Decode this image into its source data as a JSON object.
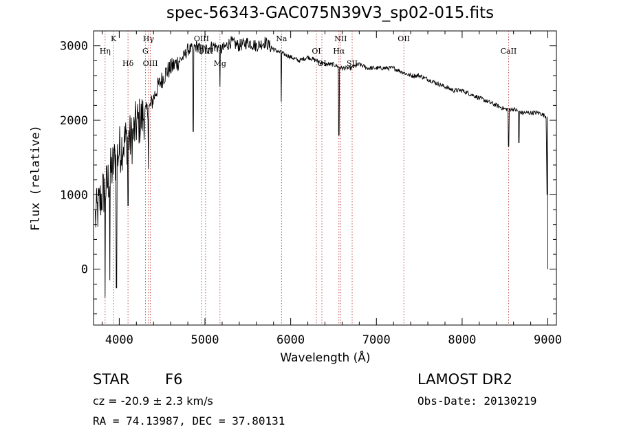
{
  "chart_data": {
    "type": "line",
    "title": "spec-56343-GAC075N39V3_sp02-015.fits",
    "xlabel": "Wavelength (Å)",
    "ylabel": "Flux (relative)",
    "xlim": [
      3700,
      9100
    ],
    "ylim": [
      -750,
      3200
    ],
    "xticks": [
      4000,
      5000,
      6000,
      7000,
      8000,
      9000
    ],
    "yticks": [
      0,
      1000,
      2000,
      3000
    ],
    "grid": false,
    "series": [
      {
        "x": [
          3700,
          3750,
          3800,
          3850,
          3900,
          3950,
          4000,
          4050,
          4100,
          4150,
          4200,
          4250,
          4300,
          4350,
          4400,
          4450,
          4500,
          4550,
          4600,
          4650,
          4700,
          4750,
          4800,
          4850,
          4900,
          4950,
          5000,
          5100,
          5200,
          5300,
          5400,
          5500,
          5600,
          5700,
          5800,
          5900,
          6000,
          6100,
          6200,
          6300,
          6400,
          6500,
          6600,
          6700,
          6800,
          6900,
          7000,
          7100,
          7200,
          7300,
          7400,
          7500,
          7600,
          7700,
          7800,
          7900,
          8000,
          8100,
          8200,
          8300,
          8400,
          8500,
          8600,
          8700,
          8800,
          8900,
          8980,
          9000
        ],
        "values": [
          600,
          800,
          1000,
          1100,
          1300,
          1450,
          1600,
          1700,
          1750,
          1750,
          1950,
          2000,
          2100,
          2150,
          2300,
          2450,
          2550,
          2650,
          2700,
          2750,
          2800,
          2850,
          2950,
          2950,
          3000,
          2950,
          2950,
          3000,
          2950,
          3050,
          3000,
          3050,
          3000,
          3050,
          2950,
          2900,
          2850,
          2800,
          2850,
          2800,
          2750,
          2750,
          2700,
          2700,
          2750,
          2700,
          2700,
          2700,
          2700,
          2650,
          2600,
          2600,
          2550,
          2500,
          2450,
          2400,
          2400,
          2350,
          2300,
          2250,
          2200,
          2150,
          2150,
          2100,
          2100,
          2100,
          2050,
          0
        ]
      }
    ],
    "absorption_lines": [
      {
        "x": 3835,
        "value": -380
      },
      {
        "x": 3890,
        "value": -150
      },
      {
        "x": 3968,
        "value": -250
      },
      {
        "x": 4102,
        "value": 850
      },
      {
        "x": 4340,
        "value": 1350
      },
      {
        "x": 4861,
        "value": 1850
      },
      {
        "x": 5175,
        "value": 2450
      },
      {
        "x": 5890,
        "value": 2250
      },
      {
        "x": 6563,
        "value": 1800
      },
      {
        "x": 8542,
        "value": 1650
      },
      {
        "x": 8662,
        "value": 1700
      }
    ],
    "line_markers": [
      {
        "label": "K",
        "x": 3934
      },
      {
        "label": "Hη",
        "x": 3835
      },
      {
        "label": "Hδ",
        "x": 4102
      },
      {
        "label": "Hγ",
        "x": 4341
      },
      {
        "label": "G",
        "x": 4305
      },
      {
        "label": "OIII",
        "x": 4363
      },
      {
        "label": "OIII",
        "x": 4959
      },
      {
        "label": "OIII",
        "x": 5007
      },
      {
        "label": "Mg",
        "x": 5175
      },
      {
        "label": "Na",
        "x": 5893
      },
      {
        "label": "OI",
        "x": 6300
      },
      {
        "label": "OI",
        "x": 6364
      },
      {
        "label": "NII",
        "x": 6583
      },
      {
        "label": "Hα",
        "x": 6563
      },
      {
        "label": "SII",
        "x": 6717
      },
      {
        "label": "OII",
        "x": 7320
      },
      {
        "label": "CaII",
        "x": 8542
      }
    ]
  },
  "info": {
    "object_class": "STAR",
    "subclass": "F6",
    "survey": "LAMOST DR2",
    "redshift": "cz = -20.9 ± 2.3 km/s",
    "obs_date": "Obs-Date: 20130219",
    "coords": "RA =  74.13987, DEC =  37.80131"
  }
}
